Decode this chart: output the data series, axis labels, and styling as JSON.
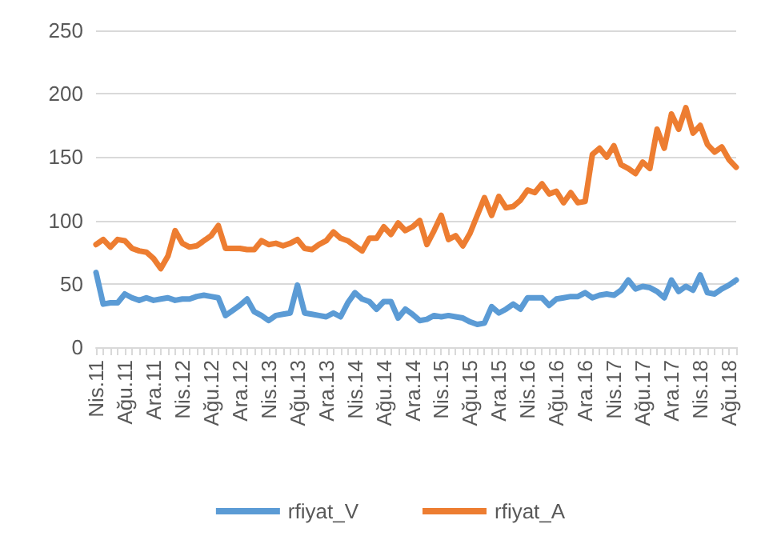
{
  "chart_data": {
    "type": "line",
    "categories": [
      "Nis.11",
      null,
      null,
      null,
      "Ağu.11",
      null,
      null,
      null,
      "Ara.11",
      null,
      null,
      null,
      "Nis.12",
      null,
      null,
      null,
      "Ağu.12",
      null,
      null,
      null,
      "Ara.12",
      null,
      null,
      null,
      "Nis.13",
      null,
      null,
      null,
      "Ağu.13",
      null,
      null,
      null,
      "Ara.13",
      null,
      null,
      null,
      "Nis.14",
      null,
      null,
      null,
      "Ağu.14",
      null,
      null,
      null,
      "Ara.14",
      null,
      null,
      null,
      "Nis.15",
      null,
      null,
      null,
      "Ağu.15",
      null,
      null,
      null,
      "Ara.15",
      null,
      null,
      null,
      "Nis.16",
      null,
      null,
      null,
      "Ağu.16",
      null,
      null,
      null,
      "Ara.16",
      null,
      null,
      null,
      "Nis.17",
      null,
      null,
      null,
      "Ağu.17",
      null,
      null,
      null,
      "Ara.17",
      null,
      null,
      null,
      "Nis.18",
      null,
      null,
      null,
      "Ağu.18",
      null
    ],
    "series": [
      {
        "name": "rfiyat_V",
        "color": "#5b9bd5",
        "values": [
          59,
          34,
          35,
          35,
          42,
          39,
          37,
          39,
          37,
          38,
          39,
          37,
          38,
          38,
          40,
          41,
          40,
          39,
          25,
          29,
          33,
          38,
          28,
          25,
          21,
          25,
          26,
          27,
          49,
          27,
          26,
          25,
          24,
          27,
          24,
          35,
          43,
          38,
          36,
          30,
          36,
          36,
          23,
          30,
          26,
          21,
          22,
          25,
          24,
          25,
          24,
          23,
          20,
          18,
          19,
          32,
          27,
          30,
          34,
          30,
          39,
          39,
          39,
          33,
          38,
          39,
          40,
          40,
          43,
          39,
          41,
          42,
          41,
          45,
          53,
          46,
          48,
          47,
          44,
          39,
          53,
          44,
          48,
          45,
          57,
          43,
          42,
          46,
          49,
          53
        ]
      },
      {
        "name": "rfiyat_A",
        "color": "#ed7d31",
        "values": [
          81,
          85,
          79,
          85,
          84,
          78,
          76,
          75,
          70,
          62,
          72,
          92,
          82,
          79,
          80,
          84,
          88,
          96,
          78,
          78,
          78,
          77,
          77,
          84,
          81,
          82,
          80,
          82,
          85,
          78,
          77,
          81,
          84,
          91,
          86,
          84,
          80,
          76,
          86,
          86,
          95,
          89,
          98,
          92,
          95,
          100,
          81,
          92,
          104,
          85,
          88,
          80,
          90,
          104,
          118,
          104,
          119,
          110,
          111,
          116,
          124,
          122,
          129,
          121,
          123,
          114,
          122,
          114,
          115,
          152,
          157,
          150,
          159,
          144,
          141,
          137,
          146,
          141,
          172,
          157,
          184,
          172,
          189,
          169,
          175,
          160,
          154,
          158,
          148,
          142
        ]
      }
    ],
    "ylim": [
      0,
      250
    ],
    "yticks": [
      0,
      50,
      100,
      150,
      200,
      250
    ],
    "grid": "y",
    "legend": "bottom",
    "marker": "none",
    "line_style": "solid"
  }
}
